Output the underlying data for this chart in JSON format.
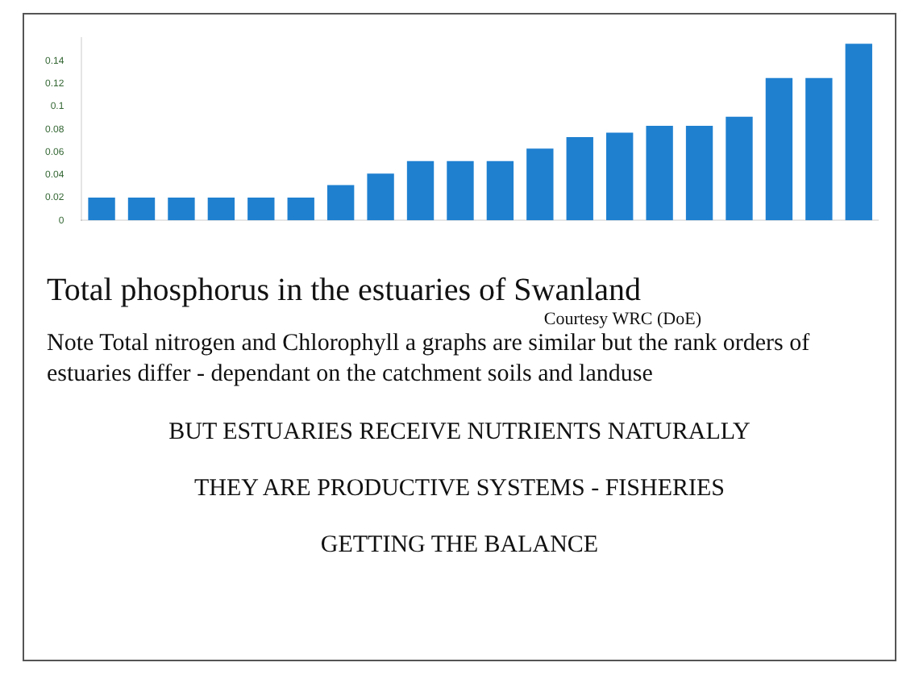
{
  "chart_data": {
    "type": "bar",
    "title": "Total phosphorus in the estuaries of Swanland",
    "annotations": [
      "Courtesy WRC (DoE)",
      "Note Total nitrogen and Chlorophyll a graphs are similar but  the rank orders of estuaries differ - dependant on the catchment soils and landuse",
      "BUT ESTUARIES RECEIVE NUTRIENTS NATURALLY",
      "THEY ARE PRODUCTIVE SYSTEMS - FISHERIES",
      "GETTING THE BALANCE"
    ],
    "categories": [
      null,
      null,
      null,
      null,
      null,
      null,
      null,
      null,
      null,
      null,
      null,
      null,
      null,
      null,
      null,
      null,
      null,
      null,
      null,
      null
    ],
    "values": [
      0.02,
      0.02,
      0.02,
      0.02,
      0.02,
      0.02,
      0.031,
      0.041,
      0.052,
      0.052,
      0.052,
      0.063,
      0.073,
      0.077,
      0.083,
      0.083,
      0.091,
      0.125,
      0.125,
      0.155
    ],
    "color": "#1f80d0",
    "ylim": [
      0,
      0.16
    ],
    "yticks": [
      0,
      0.02,
      0.04,
      0.06,
      0.08,
      0.1,
      0.12,
      0.14
    ],
    "grid": false
  }
}
